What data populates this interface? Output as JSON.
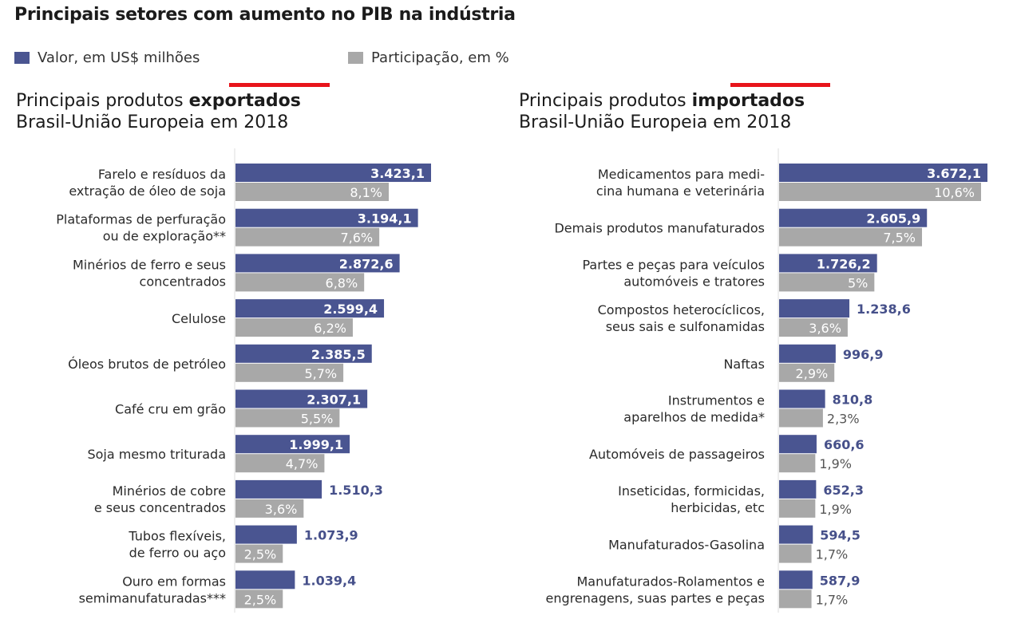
{
  "title": "Principais setores com aumento no PIB na indústria",
  "legend": [
    {
      "label": "Valor, em US$ milhões",
      "color": "#4a5591"
    },
    {
      "label": "Participação, em %",
      "color": "#a8a8a8"
    }
  ],
  "chart_data": [
    {
      "type": "bar",
      "orientation": "horizontal",
      "title_prefix": "Principais produtos ",
      "title_bold": "exportados",
      "subtitle": "Brasil-União Europeia em 2018",
      "categories": [
        [
          "Farelo e resíduos da",
          "extração de óleo de soja"
        ],
        [
          "Plataformas de perfuração",
          "ou de exploração**"
        ],
        [
          "Minérios de ferro e seus",
          "concentrados"
        ],
        [
          "Celulose"
        ],
        [
          "Óleos brutos de petróleo"
        ],
        [
          "Café cru em grão"
        ],
        [
          "Soja mesmo triturada"
        ],
        [
          "Minérios de cobre",
          "e seus concentrados"
        ],
        [
          "Tubos flexíveis,",
          "de ferro ou aço"
        ],
        [
          "Ouro em formas",
          "semimanufaturadas***"
        ]
      ],
      "series": [
        {
          "name": "Valor, em US$ milhões",
          "values": [
            3423.1,
            3194.1,
            2872.6,
            2599.4,
            2385.5,
            2307.1,
            1999.1,
            1510.3,
            1073.9,
            1039.4
          ],
          "labels": [
            "3.423,1",
            "3.194,1",
            "2.872,6",
            "2.599,4",
            "2.385,5",
            "2.307,1",
            "1.999,1",
            "1.510,3",
            "1.073,9",
            "1.039,4"
          ]
        },
        {
          "name": "Participação, em %",
          "values": [
            8.1,
            7.6,
            6.8,
            6.2,
            5.7,
            5.5,
            4.7,
            3.6,
            2.5,
            2.5
          ],
          "labels": [
            "8,1%",
            "7,6%",
            "6,8%",
            "6,2%",
            "5,7%",
            "5,5%",
            "4,7%",
            "3,6%",
            "2,5%",
            "2,5%"
          ]
        }
      ]
    },
    {
      "type": "bar",
      "orientation": "horizontal",
      "title_prefix": "Principais produtos ",
      "title_bold": "importados",
      "subtitle": "Brasil-União Europeia em 2018",
      "categories": [
        [
          "Medicamentos para medi-",
          "cina humana e veterinária"
        ],
        [
          "Demais produtos manufaturados"
        ],
        [
          "Partes e peças para veículos",
          "automóveis e tratores"
        ],
        [
          "Compostos heterocíclicos,",
          "seus sais e sulfonamidas"
        ],
        [
          "Naftas"
        ],
        [
          "Instrumentos e",
          "aparelhos de medida*"
        ],
        [
          "Automóveis de passageiros"
        ],
        [
          "Inseticidas, formicidas,",
          "herbicidas, etc"
        ],
        [
          "Manufaturados-Gasolina"
        ],
        [
          "Manufaturados-Rolamentos e",
          "engrenagens, suas partes e peças"
        ]
      ],
      "series": [
        {
          "name": "Valor, em US$ milhões",
          "values": [
            3672.1,
            2605.9,
            1726.2,
            1238.6,
            996.9,
            810.8,
            660.6,
            652.3,
            594.5,
            587.9
          ],
          "labels": [
            "3.672,1",
            "2.605,9",
            "1.726,2",
            "1.238,6",
            "996,9",
            "810,8",
            "660,6",
            "652,3",
            "594,5",
            "587,9"
          ]
        },
        {
          "name": "Participação, em %",
          "values": [
            10.6,
            7.5,
            5.0,
            3.6,
            2.9,
            2.3,
            1.9,
            1.9,
            1.7,
            1.7
          ],
          "labels": [
            "10,6%",
            "7,5%",
            "5%",
            "3,6%",
            "2,9%",
            "2,3%",
            "1,9%",
            "1,9%",
            "1,7%",
            "1,7%"
          ]
        }
      ]
    }
  ]
}
